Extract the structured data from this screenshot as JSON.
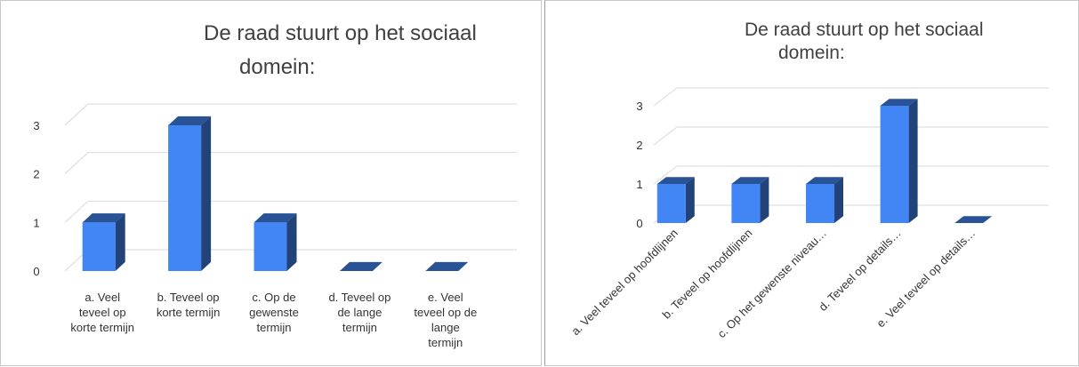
{
  "chart_data": [
    {
      "type": "bar",
      "title_line1": "De raad stuurt op het sociaal",
      "title_line2": "domein:",
      "categories": [
        "a. Veel teveel op korte termijn",
        "b. Teveel op korte termijn",
        "c. Op de gewenste termijn",
        "d. Teveel op de lange termijn",
        "e. Veel teveel op de lange termijn"
      ],
      "category_lines": [
        [
          "a. Veel",
          "teveel op",
          "korte termijn"
        ],
        [
          "b. Teveel op",
          "korte termijn"
        ],
        [
          "c. Op de",
          "gewenste",
          "termijn"
        ],
        [
          "d. Teveel op",
          "de lange",
          "termijn"
        ],
        [
          "e. Veel",
          "teveel op de",
          "lange",
          "termijn"
        ]
      ],
      "values": [
        1,
        3,
        1,
        0,
        0
      ],
      "yticks": [
        "0",
        "1",
        "2",
        "3"
      ],
      "ylim": [
        0,
        3
      ],
      "grid": true,
      "bar_color": "#4285f4"
    },
    {
      "type": "bar",
      "title_line1": "De raad stuurt op het sociaal",
      "title_line2": "domein:",
      "categories": [
        "a. Veel teveel op hoofdlijnen",
        "b. Teveel op hoofdlijnen",
        "c. Op het gewenste niveau…",
        "d. Teveel op details…",
        "e. Veel teveel op details…"
      ],
      "values": [
        1,
        1,
        1,
        3,
        0
      ],
      "yticks": [
        "0",
        "1",
        "2",
        "3"
      ],
      "ylim": [
        0,
        3
      ],
      "grid": true,
      "bar_color": "#4285f4"
    }
  ]
}
